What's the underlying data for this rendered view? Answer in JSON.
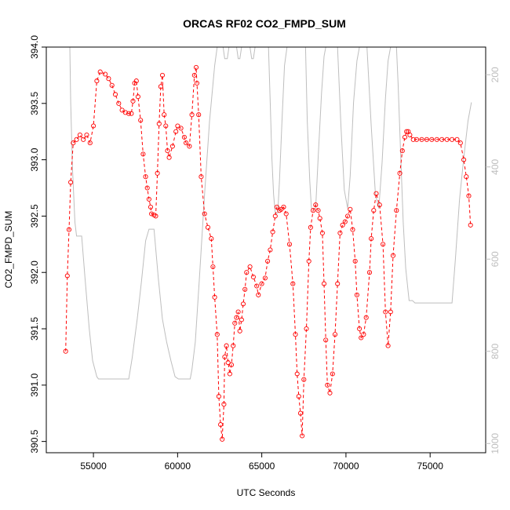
{
  "chart_data": {
    "type": "line",
    "title": "ORCAS RF02 CO2_FMPD_SUM",
    "xlabel": "UTC Seconds",
    "ylabel": "CO2_FMPD_SUM",
    "xlim": [
      52200,
      78300
    ],
    "ylim": [
      390.4,
      394.0
    ],
    "x_ticks": [
      "55000",
      "60000",
      "65000",
      "70000",
      "75000"
    ],
    "y_ticks": [
      "390.5",
      "391.0",
      "391.5",
      "392.0",
      "392.5",
      "393.0",
      "393.5",
      "394.0"
    ],
    "y2_ticks": [
      "200",
      "400",
      "600",
      "800",
      "1000"
    ],
    "y2lim": [
      1020,
      140
    ],
    "colors": {
      "co2_series": "#ff0000",
      "pressure_series": "#bebebe",
      "axis": "#000000",
      "right_axis": "#bdbdbd"
    },
    "series": [
      {
        "role": "co2 (left axis, red circles joined by dashed line)",
        "points": [
          [
            53350,
            391.3
          ],
          [
            53450,
            391.97
          ],
          [
            53550,
            392.38
          ],
          [
            53650,
            392.8
          ],
          [
            53800,
            393.15
          ],
          [
            54000,
            393.18
          ],
          [
            54200,
            393.22
          ],
          [
            54400,
            393.18
          ],
          [
            54600,
            393.22
          ],
          [
            54800,
            393.15
          ],
          [
            55000,
            393.3
          ],
          [
            55200,
            393.7
          ],
          [
            55400,
            393.78
          ],
          [
            55700,
            393.76
          ],
          [
            55900,
            393.72
          ],
          [
            56100,
            393.66
          ],
          [
            56300,
            393.58
          ],
          [
            56500,
            393.5
          ],
          [
            56700,
            393.44
          ],
          [
            56900,
            393.42
          ],
          [
            57100,
            393.41
          ],
          [
            57250,
            393.41
          ],
          [
            57350,
            393.52
          ],
          [
            57450,
            393.68
          ],
          [
            57550,
            393.7
          ],
          [
            57650,
            393.56
          ],
          [
            57800,
            393.35
          ],
          [
            57950,
            393.05
          ],
          [
            58100,
            392.85
          ],
          [
            58200,
            392.75
          ],
          [
            58300,
            392.65
          ],
          [
            58400,
            392.58
          ],
          [
            58450,
            392.52
          ],
          [
            58600,
            392.51
          ],
          [
            58700,
            392.5
          ],
          [
            58800,
            392.88
          ],
          [
            58900,
            393.32
          ],
          [
            59000,
            393.65
          ],
          [
            59100,
            393.75
          ],
          [
            59200,
            393.4
          ],
          [
            59300,
            393.3
          ],
          [
            59400,
            393.08
          ],
          [
            59500,
            393.02
          ],
          [
            59700,
            393.12
          ],
          [
            59900,
            393.25
          ],
          [
            60000,
            393.3
          ],
          [
            60200,
            393.28
          ],
          [
            60400,
            393.2
          ],
          [
            60500,
            393.15
          ],
          [
            60700,
            393.12
          ],
          [
            60850,
            393.4
          ],
          [
            61000,
            393.75
          ],
          [
            61100,
            393.82
          ],
          [
            61150,
            393.68
          ],
          [
            61250,
            393.4
          ],
          [
            61400,
            392.85
          ],
          [
            61600,
            392.52
          ],
          [
            61800,
            392.4
          ],
          [
            62000,
            392.3
          ],
          [
            62100,
            392.05
          ],
          [
            62200,
            391.78
          ],
          [
            62350,
            391.45
          ],
          [
            62450,
            390.9
          ],
          [
            62550,
            390.65
          ],
          [
            62650,
            390.52
          ],
          [
            62750,
            390.83
          ],
          [
            62800,
            391.25
          ],
          [
            62900,
            391.35
          ],
          [
            63000,
            391.2
          ],
          [
            63100,
            391.1
          ],
          [
            63200,
            391.18
          ],
          [
            63300,
            391.35
          ],
          [
            63400,
            391.55
          ],
          [
            63500,
            391.6
          ],
          [
            63600,
            391.65
          ],
          [
            63700,
            391.48
          ],
          [
            63800,
            391.58
          ],
          [
            63900,
            391.72
          ],
          [
            64000,
            391.85
          ],
          [
            64100,
            392.0
          ],
          [
            64300,
            392.05
          ],
          [
            64500,
            391.96
          ],
          [
            64700,
            391.88
          ],
          [
            64800,
            391.8
          ],
          [
            65000,
            391.9
          ],
          [
            65200,
            391.95
          ],
          [
            65350,
            392.1
          ],
          [
            65500,
            392.2
          ],
          [
            65650,
            392.36
          ],
          [
            65800,
            392.5
          ],
          [
            65900,
            392.58
          ],
          [
            66050,
            392.55
          ],
          [
            66150,
            392.56
          ],
          [
            66300,
            392.58
          ],
          [
            66450,
            392.52
          ],
          [
            66650,
            392.25
          ],
          [
            66850,
            391.9
          ],
          [
            67000,
            391.45
          ],
          [
            67100,
            391.1
          ],
          [
            67200,
            390.9
          ],
          [
            67300,
            390.75
          ],
          [
            67400,
            390.55
          ],
          [
            67500,
            391.05
          ],
          [
            67650,
            391.5
          ],
          [
            67800,
            392.1
          ],
          [
            67900,
            392.4
          ],
          [
            68050,
            392.55
          ],
          [
            68200,
            392.6
          ],
          [
            68350,
            392.55
          ],
          [
            68450,
            392.48
          ],
          [
            68600,
            392.35
          ],
          [
            68700,
            391.9
          ],
          [
            68800,
            391.4
          ],
          [
            68900,
            391.0
          ],
          [
            69050,
            390.93
          ],
          [
            69200,
            391.1
          ],
          [
            69350,
            391.45
          ],
          [
            69500,
            391.9
          ],
          [
            69650,
            392.35
          ],
          [
            69800,
            392.42
          ],
          [
            69950,
            392.45
          ],
          [
            70100,
            392.5
          ],
          [
            70250,
            392.56
          ],
          [
            70400,
            392.38
          ],
          [
            70550,
            392.1
          ],
          [
            70650,
            391.8
          ],
          [
            70800,
            391.5
          ],
          [
            70900,
            391.42
          ],
          [
            71050,
            391.45
          ],
          [
            71200,
            391.6
          ],
          [
            71400,
            392.0
          ],
          [
            71500,
            392.3
          ],
          [
            71650,
            392.55
          ],
          [
            71800,
            392.7
          ],
          [
            72000,
            392.6
          ],
          [
            72200,
            392.25
          ],
          [
            72350,
            391.65
          ],
          [
            72500,
            391.35
          ],
          [
            72650,
            391.65
          ],
          [
            72800,
            392.15
          ],
          [
            73000,
            392.55
          ],
          [
            73200,
            392.88
          ],
          [
            73350,
            393.08
          ],
          [
            73500,
            393.2
          ],
          [
            73600,
            393.25
          ],
          [
            73700,
            393.25
          ],
          [
            73800,
            393.22
          ],
          [
            74000,
            393.18
          ],
          [
            74200,
            393.18
          ],
          [
            74500,
            393.18
          ],
          [
            74800,
            393.18
          ],
          [
            75100,
            393.18
          ],
          [
            75400,
            393.18
          ],
          [
            75700,
            393.18
          ],
          [
            76000,
            393.18
          ],
          [
            76300,
            393.18
          ],
          [
            76600,
            393.18
          ],
          [
            76800,
            393.15
          ],
          [
            77000,
            393.0
          ],
          [
            77150,
            392.85
          ],
          [
            77300,
            392.68
          ],
          [
            77400,
            392.42
          ]
        ]
      },
      {
        "role": "pressure (right axis, grey line)",
        "points": [
          [
            53600,
            140
          ],
          [
            53650,
            260
          ],
          [
            53750,
            400
          ],
          [
            53900,
            520
          ],
          [
            54000,
            550
          ],
          [
            54300,
            550
          ],
          [
            54500,
            640
          ],
          [
            54750,
            750
          ],
          [
            54950,
            820
          ],
          [
            55200,
            855
          ],
          [
            55300,
            860
          ],
          [
            57100,
            860
          ],
          [
            57300,
            815
          ],
          [
            57600,
            730
          ],
          [
            57850,
            650
          ],
          [
            58100,
            560
          ],
          [
            58300,
            535
          ],
          [
            58600,
            535
          ],
          [
            58850,
            640
          ],
          [
            59100,
            730
          ],
          [
            59350,
            780
          ],
          [
            59600,
            820
          ],
          [
            59850,
            855
          ],
          [
            60050,
            860
          ],
          [
            60750,
            860
          ],
          [
            60850,
            840
          ],
          [
            61050,
            780
          ],
          [
            61300,
            640
          ],
          [
            61600,
            460
          ],
          [
            61900,
            300
          ],
          [
            62200,
            180
          ],
          [
            62350,
            140
          ],
          [
            62700,
            140
          ],
          [
            62800,
            165
          ],
          [
            62950,
            165
          ],
          [
            63050,
            140
          ],
          [
            63500,
            140
          ],
          [
            63600,
            165
          ],
          [
            63700,
            165
          ],
          [
            63800,
            140
          ],
          [
            64300,
            140
          ],
          [
            64400,
            165
          ],
          [
            64500,
            165
          ],
          [
            64600,
            140
          ],
          [
            65400,
            140
          ],
          [
            65500,
            260
          ],
          [
            65600,
            380
          ],
          [
            65700,
            460
          ],
          [
            65800,
            500
          ],
          [
            65950,
            500
          ],
          [
            66050,
            430
          ],
          [
            66200,
            300
          ],
          [
            66350,
            180
          ],
          [
            66500,
            140
          ],
          [
            67600,
            140
          ],
          [
            67700,
            300
          ],
          [
            67850,
            430
          ],
          [
            67950,
            490
          ],
          [
            68200,
            490
          ],
          [
            68350,
            380
          ],
          [
            68550,
            240
          ],
          [
            68700,
            160
          ],
          [
            68800,
            140
          ],
          [
            69500,
            140
          ],
          [
            69700,
            310
          ],
          [
            69900,
            450
          ],
          [
            70100,
            490
          ],
          [
            70250,
            420
          ],
          [
            70450,
            260
          ],
          [
            70650,
            170
          ],
          [
            70800,
            140
          ],
          [
            71250,
            140
          ],
          [
            71500,
            310
          ],
          [
            71750,
            460
          ],
          [
            71950,
            490
          ],
          [
            72150,
            390
          ],
          [
            72350,
            250
          ],
          [
            72500,
            170
          ],
          [
            72650,
            140
          ],
          [
            73000,
            140
          ],
          [
            73100,
            220
          ],
          [
            73250,
            370
          ],
          [
            73400,
            520
          ],
          [
            73550,
            620
          ],
          [
            73750,
            690
          ],
          [
            73950,
            690
          ],
          [
            74100,
            695
          ],
          [
            74500,
            695
          ],
          [
            75000,
            695
          ],
          [
            75500,
            695
          ],
          [
            76000,
            695
          ],
          [
            76300,
            695
          ],
          [
            76500,
            600
          ],
          [
            76750,
            470
          ],
          [
            77000,
            380
          ],
          [
            77250,
            300
          ],
          [
            77450,
            260
          ]
        ]
      }
    ]
  }
}
